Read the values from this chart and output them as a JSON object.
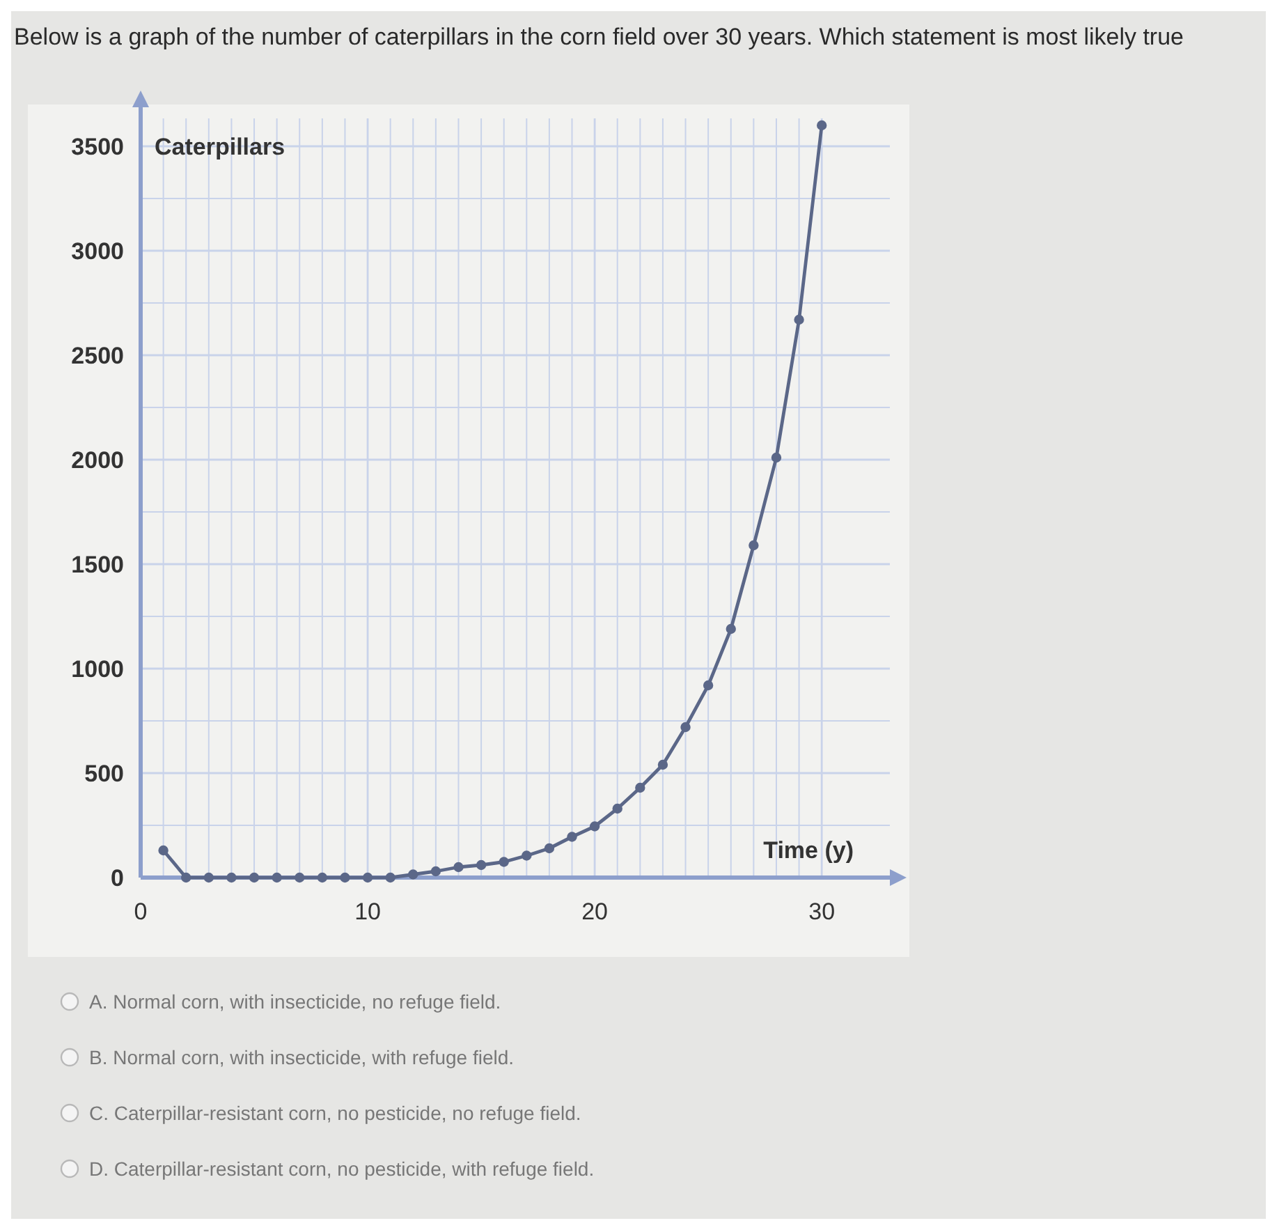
{
  "chart_data": {
    "type": "line",
    "title": "Below is a graph of the number of caterpillars in the corn field over 30 years. Which statement is most likely true",
    "xlabel": "Time (y)",
    "ylabel": "Caterpillars",
    "x": [
      1,
      2,
      3,
      4,
      5,
      6,
      7,
      8,
      9,
      10,
      11,
      12,
      13,
      14,
      15,
      16,
      17,
      18,
      19,
      20,
      21,
      22,
      23,
      24,
      25,
      26,
      27,
      28,
      29,
      30
    ],
    "series": [
      {
        "color": "#5b6788",
        "values": [
          130,
          0,
          0,
          0,
          0,
          0,
          0,
          0,
          0,
          0,
          0,
          15,
          30,
          50,
          60,
          75,
          105,
          140,
          195,
          245,
          330,
          430,
          540,
          720,
          920,
          1190,
          1590,
          2010,
          2670,
          3600
        ]
      }
    ],
    "xlim": [
      0,
      33
    ],
    "ylim": [
      0,
      3700
    ],
    "xticks": [
      0,
      {
        "value": 1,
        "label": null
      },
      {
        "value": 2,
        "label": null
      },
      {
        "value": 3,
        "label": null
      },
      {
        "value": 4,
        "label": null
      },
      {
        "value": 5,
        "label": null
      },
      {
        "value": 6,
        "label": null
      },
      {
        "value": 7,
        "label": null
      },
      {
        "value": 8,
        "label": null
      },
      {
        "value": 9,
        "label": null
      },
      10,
      {
        "value": 11,
        "label": null
      },
      {
        "value": 12,
        "label": null
      },
      {
        "value": 13,
        "label": null
      },
      {
        "value": 14,
        "label": null
      },
      {
        "value": 15,
        "label": null
      },
      {
        "value": 16,
        "label": null
      },
      {
        "value": 17,
        "label": null
      },
      {
        "value": 18,
        "label": null
      },
      {
        "value": 19,
        "label": null
      },
      20,
      {
        "value": 21,
        "label": null
      },
      {
        "value": 22,
        "label": null
      },
      {
        "value": 23,
        "label": null
      },
      {
        "value": 24,
        "label": null
      },
      {
        "value": 25,
        "label": null
      },
      {
        "value": 26,
        "label": null
      },
      {
        "value": 27,
        "label": null
      },
      {
        "value": 28,
        "label": null
      },
      {
        "value": 29,
        "label": null
      },
      30
    ],
    "yticks": [
      0,
      {
        "value": 250,
        "label": null
      },
      500,
      {
        "value": 750,
        "label": null
      },
      1000,
      {
        "value": 1250,
        "label": null
      },
      1500,
      {
        "value": 1750,
        "label": null
      },
      2000,
      {
        "value": 2250,
        "label": null
      },
      2500,
      {
        "value": 2750,
        "label": null
      },
      3000,
      {
        "value": 3250,
        "label": null
      },
      3500
    ],
    "grid": true,
    "marker": "circle",
    "line_style": "solid",
    "annotations": [
      "A. Normal corn, with insecticide, no refuge field.",
      "B. Normal corn, with insecticide, with refuge field.",
      "C. Caterpillar-resistant corn, no pesticide, no refuge field.",
      "D. Caterpillar-resistant corn, no pesticide, with refuge field."
    ]
  }
}
